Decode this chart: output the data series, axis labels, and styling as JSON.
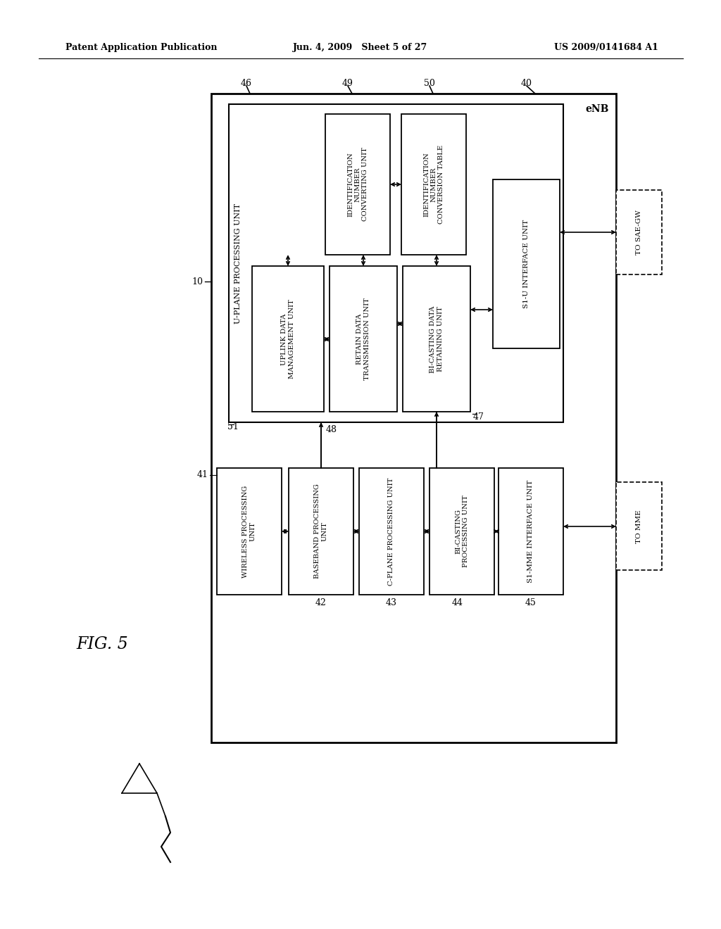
{
  "bg_color": "#ffffff",
  "lc": "#000000",
  "header_left": "Patent Application Publication",
  "header_mid": "Jun. 4, 2009   Sheet 5 of 27",
  "header_right": "US 2009/0141684 A1",
  "fig_label": "FIG. 5",
  "enb_label": "eNB",
  "ref10": "10",
  "ref40": "40",
  "ref41": "41",
  "ref42": "42",
  "ref43": "43",
  "ref44": "44",
  "ref45": "45",
  "ref46": "46",
  "ref47": "47",
  "ref48": "48",
  "ref49": "49",
  "ref50": "50",
  "ref51": "51",
  "u_plane": "U-PLANE PROCESSING UNIT",
  "uplink": "UPLINK DATA\nMANAGEMENT UNIT",
  "retain": "RETAIN DATA\nTRANSMISSION UNIT",
  "bicasting_data": "BI-CASTING DATA\nRETAINING UNIT",
  "id_converting": "IDENTIFICATION\nNUMBER\nCONVERTING UNIT",
  "id_table": "IDENTIFICATION\nNUMBER\nCONVERSION TABLE",
  "s1u": "S1-U INTERFACE UNIT",
  "to_saegw": "TO SAE-GW",
  "wireless": "WIRELESS PROCESSING\nUNIT",
  "baseband": "BASEBAND PROCESSING\nUNIT",
  "cplane": "C-PLANE PROCESSING UNIT",
  "bicasting_proc": "BI-CASTING\nPROCESSING UNIT",
  "s1mme": "S1-MME INTERFACE UNIT",
  "to_mme": "TO MME"
}
